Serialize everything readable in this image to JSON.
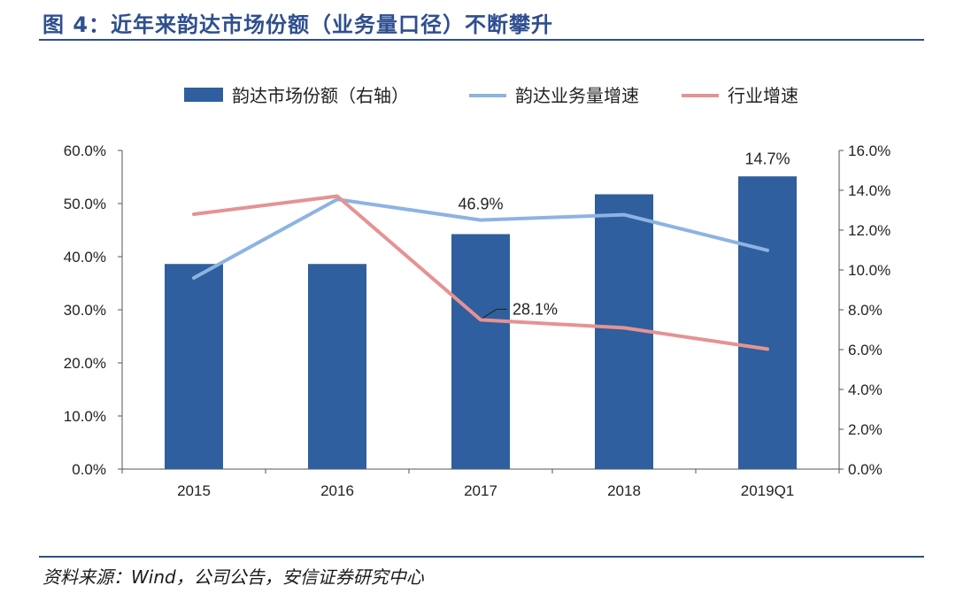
{
  "title": "图 4：近年来韵达市场份额（业务量口径）不断攀升",
  "source": "资料来源：Wind，公司公告，安信证券研究中心",
  "colors": {
    "bar": "#2f5f9e",
    "line_volume": "#8db3e2",
    "line_industry": "#e49392",
    "accent": "#2e4f8f"
  },
  "chart_data": {
    "type": "bar+line",
    "categories": [
      "2015",
      "2016",
      "2017",
      "2018",
      "2019Q1"
    ],
    "left_axis": {
      "ticks": [
        "0.0%",
        "10.0%",
        "20.0%",
        "30.0%",
        "40.0%",
        "50.0%",
        "60.0%"
      ],
      "ylim": [
        0,
        60
      ]
    },
    "right_axis": {
      "ticks": [
        "0.0%",
        "2.0%",
        "4.0%",
        "6.0%",
        "8.0%",
        "10.0%",
        "12.0%",
        "14.0%",
        "16.0%"
      ],
      "ylim": [
        0,
        16
      ]
    },
    "series": [
      {
        "name": "韵达市场份额（右轴）",
        "type": "bar",
        "axis": "right",
        "values": [
          10.3,
          10.3,
          11.8,
          13.8,
          14.7
        ]
      },
      {
        "name": "韵达业务量增速",
        "type": "line",
        "axis": "left",
        "values": [
          36.0,
          50.8,
          46.9,
          47.9,
          41.2
        ]
      },
      {
        "name": "行业增速",
        "type": "line",
        "axis": "left",
        "values": [
          48.0,
          51.4,
          28.1,
          26.6,
          22.6
        ]
      }
    ],
    "data_labels": [
      {
        "series": 0,
        "index": 4,
        "text": "14.7%"
      },
      {
        "series": 1,
        "index": 2,
        "text": "46.9%"
      },
      {
        "series": 2,
        "index": 2,
        "text": "28.1%"
      }
    ],
    "legend_position": "top"
  }
}
